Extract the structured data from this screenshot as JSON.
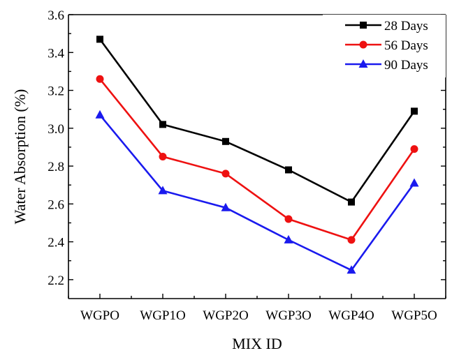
{
  "chart_data": {
    "type": "line",
    "categories": [
      "WGPO",
      "WGP1O",
      "WGP2O",
      "WGP3O",
      "WGP4O",
      "WGP5O"
    ],
    "xlabel": "MIX ID",
    "ylabel": "Water Absorption (%)",
    "ylim": [
      2.1,
      3.6
    ],
    "yticks": [
      "2.2",
      "2.4",
      "2.6",
      "2.8",
      "3.0",
      "3.2",
      "3.4",
      "3.6"
    ],
    "legend_position": "top-right",
    "grid": false,
    "series": [
      {
        "name": "28 Days",
        "color": "#000000",
        "marker": "square",
        "values": [
          3.47,
          3.02,
          2.93,
          2.78,
          2.61,
          3.09
        ]
      },
      {
        "name": "56 Days",
        "color": "#ee1111",
        "marker": "circle",
        "values": [
          3.26,
          2.85,
          2.76,
          2.52,
          2.41,
          2.89
        ]
      },
      {
        "name": "90 Days",
        "color": "#1a1aee",
        "marker": "triangle",
        "values": [
          3.07,
          2.67,
          2.58,
          2.41,
          2.25,
          2.71
        ]
      }
    ]
  }
}
